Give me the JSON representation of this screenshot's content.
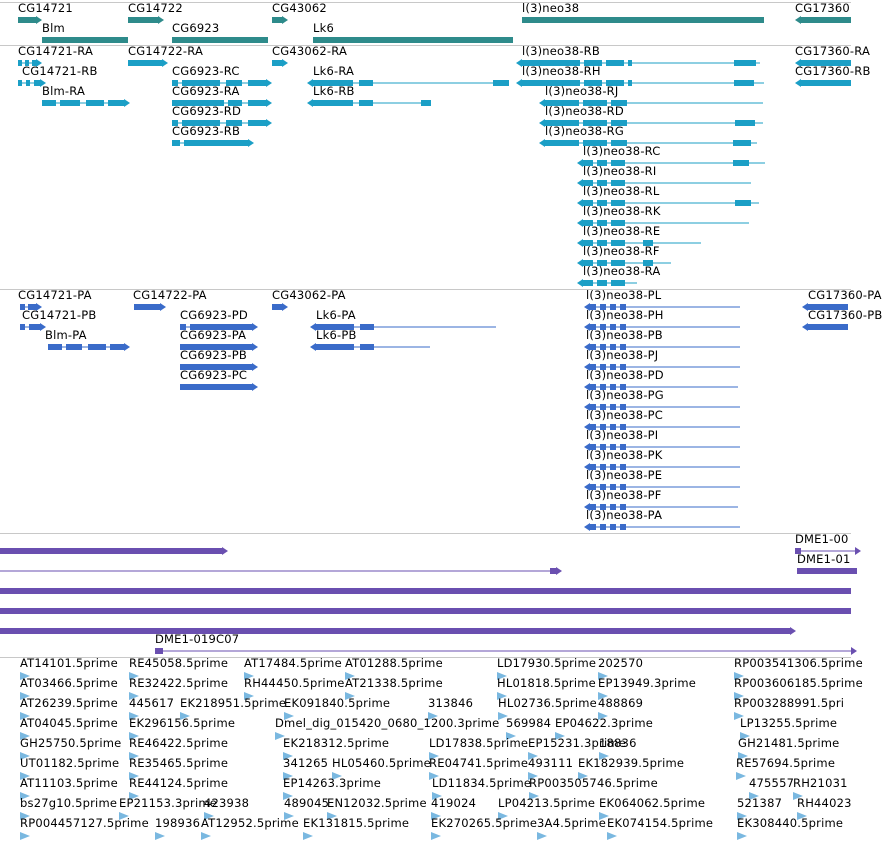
{
  "colors": {
    "gene": "#2e8b8b",
    "transcript": "#1b9fc6",
    "cds": "#3a6bc9",
    "alignment": "#6a4fb0",
    "est": "#7ab8e0"
  },
  "tracks": {
    "genes": [
      {
        "label": "CG14721",
        "strand": "+"
      },
      {
        "label": "Blm",
        "strand": "none"
      },
      {
        "label": "CG14722",
        "strand": "+"
      },
      {
        "label": "CG6923",
        "strand": "none"
      },
      {
        "label": "CG43062",
        "strand": "+"
      },
      {
        "label": "Lk6",
        "strand": "none"
      },
      {
        "label": "l(3)neo38",
        "strand": "none"
      },
      {
        "label": "CG17360",
        "strand": "-"
      }
    ],
    "transcripts": [
      {
        "label": "CG14721-RA",
        "strand": "+"
      },
      {
        "label": "CG14721-RB",
        "strand": "+"
      },
      {
        "label": "Blm-RA",
        "strand": "+"
      },
      {
        "label": "CG14722-RA",
        "strand": "+"
      },
      {
        "label": "CG6923-RC",
        "strand": "+"
      },
      {
        "label": "CG6923-RA",
        "strand": "+"
      },
      {
        "label": "CG6923-RD",
        "strand": "+"
      },
      {
        "label": "CG6923-RB",
        "strand": "+"
      },
      {
        "label": "CG43062-RA",
        "strand": "+"
      },
      {
        "label": "Lk6-RA",
        "strand": "-"
      },
      {
        "label": "Lk6-RB",
        "strand": "-"
      },
      {
        "label": "l(3)neo38-RB",
        "strand": "-"
      },
      {
        "label": "l(3)neo38-RH",
        "strand": "-"
      },
      {
        "label": "l(3)neo38-RJ",
        "strand": "-"
      },
      {
        "label": "l(3)neo38-RD",
        "strand": "-"
      },
      {
        "label": "l(3)neo38-RG",
        "strand": "-"
      },
      {
        "label": "l(3)neo38-RC",
        "strand": "-"
      },
      {
        "label": "l(3)neo38-RI",
        "strand": "-"
      },
      {
        "label": "l(3)neo38-RL",
        "strand": "-"
      },
      {
        "label": "l(3)neo38-RK",
        "strand": "-"
      },
      {
        "label": "l(3)neo38-RE",
        "strand": "-"
      },
      {
        "label": "l(3)neo38-RF",
        "strand": "-"
      },
      {
        "label": "l(3)neo38-RA",
        "strand": "-"
      },
      {
        "label": "CG17360-RA",
        "strand": "-"
      },
      {
        "label": "CG17360-RB",
        "strand": "-"
      }
    ],
    "proteins": [
      {
        "label": "CG14721-PA",
        "strand": "+"
      },
      {
        "label": "CG14721-PB",
        "strand": "+"
      },
      {
        "label": "Blm-PA",
        "strand": "+"
      },
      {
        "label": "CG14722-PA",
        "strand": "+"
      },
      {
        "label": "CG6923-PD",
        "strand": "+"
      },
      {
        "label": "CG6923-PA",
        "strand": "+"
      },
      {
        "label": "CG6923-PB",
        "strand": "+"
      },
      {
        "label": "CG6923-PC",
        "strand": "+"
      },
      {
        "label": "CG43062-PA",
        "strand": "+"
      },
      {
        "label": "Lk6-PA",
        "strand": "-"
      },
      {
        "label": "Lk6-PB",
        "strand": "-"
      },
      {
        "label": "l(3)neo38-PL",
        "strand": "-"
      },
      {
        "label": "l(3)neo38-PH",
        "strand": "-"
      },
      {
        "label": "l(3)neo38-PB",
        "strand": "-"
      },
      {
        "label": "l(3)neo38-PJ",
        "strand": "-"
      },
      {
        "label": "l(3)neo38-PD",
        "strand": "-"
      },
      {
        "label": "l(3)neo38-PG",
        "strand": "-"
      },
      {
        "label": "l(3)neo38-PC",
        "strand": "-"
      },
      {
        "label": "l(3)neo38-PI",
        "strand": "-"
      },
      {
        "label": "l(3)neo38-PK",
        "strand": "-"
      },
      {
        "label": "l(3)neo38-PE",
        "strand": "-"
      },
      {
        "label": "l(3)neo38-PF",
        "strand": "-"
      },
      {
        "label": "l(3)neo38-PA",
        "strand": "-"
      },
      {
        "label": "CG17360-PA",
        "strand": "-"
      },
      {
        "label": "CG17360-PB",
        "strand": "-"
      }
    ],
    "alignments": [
      {
        "label": "",
        "strand": "+"
      },
      {
        "label": "",
        "strand": "+"
      },
      {
        "label": "",
        "strand": "none"
      },
      {
        "label": "",
        "strand": "none"
      },
      {
        "label": "",
        "strand": "+"
      },
      {
        "label": "DME1-019C07",
        "strand": "+"
      },
      {
        "label": "DME1-00",
        "strand": "+"
      },
      {
        "label": "DME1-01",
        "strand": "none"
      }
    ],
    "ests": [
      "AT14101.5prime",
      "RE45058.5prime",
      "AT17484.5prime",
      "AT01288.5prime",
      "LD17930.5prime",
      "202570",
      "RP003541306.5prime",
      "AT03466.5prime",
      "RE32422.5prime",
      "RH44450.5prime",
      "AT21338.5prime",
      "HL01818.5prime",
      "EP13949.3prime",
      "RP003606185.5prime",
      "AT26239.5prime",
      "445617",
      "EK218951.5prime",
      "EK091840.5prime",
      "313846",
      "HL02736.5prime",
      "488869",
      "RP003288991.5pri",
      "AT04045.5prime",
      "EK296156.5prime",
      "Dmel_dig_015420_0680_1200.3prime",
      "569984",
      "EP04622.3prime",
      "LP13255.5prime",
      "GH25750.5prime",
      "RE46422.5prime",
      "EK218312.5prime",
      "LD17838.5prime",
      "EP15231.3prime",
      "18836",
      "GH21481.5prime",
      "UT01182.5prime",
      "RE35465.5prime",
      "341265",
      "HL05460.5prime",
      "RE04741.5prime",
      "493111",
      "EK182939.5prime",
      "RE57694.5prime",
      "AT11103.5prime",
      "RE44124.5prime",
      "EP14263.3prime",
      "LD11834.5prime",
      "RP003505746.5prime",
      "475557",
      "RH21031",
      "bs27g10.5prime",
      "EP21153.3prime",
      "423938",
      "489045",
      "EN12032.5prime",
      "419024",
      "LP04213.5prime",
      "EK064062.5prime",
      "521387",
      "RH44023",
      "RP004457127.5prime",
      "198936",
      "AT12952.5prime",
      "EK131815.5prime",
      "EK270265.5prime",
      "3A4.5prime",
      "EK074154.5prime",
      "EK308440.5prime"
    ]
  }
}
